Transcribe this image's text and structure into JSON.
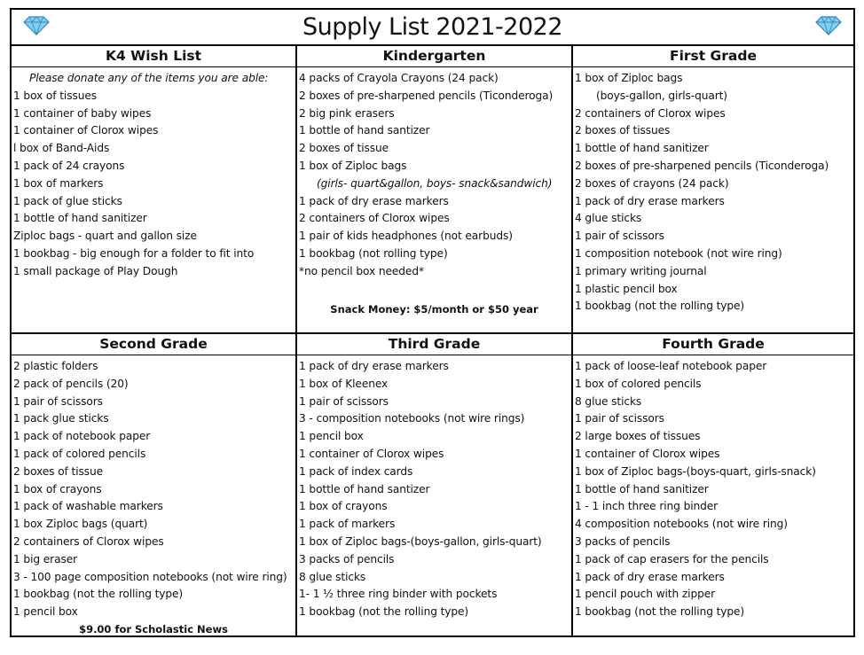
{
  "title": "Supply List 2021-2022",
  "colors": {
    "diamond": "#6ec6f0",
    "border": "#000000"
  },
  "icons": {
    "left": "diamond-icon",
    "right": "diamond-icon"
  },
  "columns": [
    {
      "heading": "K4 Wish List",
      "items": [
        {
          "text": "Please donate any of the items you are able:",
          "style": "note"
        },
        {
          "text": "1 box of tissues"
        },
        {
          "text": "1 container of baby wipes"
        },
        {
          "text": "1 container of Clorox wipes"
        },
        {
          "text": "l box of Band-Aids"
        },
        {
          "text": "1 pack of 24 crayons"
        },
        {
          "text": "1 box of markers"
        },
        {
          "text": "1 pack of glue sticks"
        },
        {
          "text": "1 bottle of hand sanitizer"
        },
        {
          "text": "Ziploc bags - quart and gallon size"
        },
        {
          "text": "1 bookbag - big enough for a folder to fit into"
        },
        {
          "text": "1 small package of Play Dough"
        }
      ],
      "footnote": ""
    },
    {
      "heading": "Kindergarten",
      "items": [
        {
          "text": "4 packs of Crayola Crayons    (24 pack)"
        },
        {
          "text": "2 boxes of pre-sharpened pencils (Ticonderoga)"
        },
        {
          "text": "2 big pink erasers"
        },
        {
          "text": "1 bottle of hand santizer"
        },
        {
          "text": "2 boxes of tissue"
        },
        {
          "text": "1 box of Ziploc bags"
        },
        {
          "text": "(girls- quart&gallon, boys- snack&sandwich)",
          "style": "indent"
        },
        {
          "text": "1 pack of dry erase markers"
        },
        {
          "text": "2 containers of Clorox wipes"
        },
        {
          "text": "1 pair of kids headphones (not earbuds)"
        },
        {
          "text": "1 bookbag (not rolling type)"
        },
        {
          "text": "*no pencil box needed*"
        }
      ],
      "footnote": "Snack Money: $5/month or $50 year"
    },
    {
      "heading": "First Grade",
      "items": [
        {
          "text": "1 box of Ziploc bags"
        },
        {
          "text": "(boys-gallon, girls-quart)",
          "style": "sub"
        },
        {
          "text": "2 containers of Clorox wipes"
        },
        {
          "text": "2 boxes of tissues"
        },
        {
          "text": "1 bottle of hand sanitizer"
        },
        {
          "text": "2 boxes of pre-sharpened pencils (Ticonderoga)"
        },
        {
          "text": "2 boxes of crayons (24 pack)"
        },
        {
          "text": "1 pack of dry erase markers"
        },
        {
          "text": "4 glue sticks"
        },
        {
          "text": "1 pair of scissors"
        },
        {
          "text": "1 composition notebook (not wire ring)"
        },
        {
          "text": "1 primary writing journal"
        },
        {
          "text": "1 plastic pencil box"
        },
        {
          "text": "1 bookbag (not the rolling type)"
        }
      ],
      "footnote": ""
    },
    {
      "heading": "Second Grade",
      "items": [
        {
          "text": "2 plastic folders"
        },
        {
          "text": "2 pack of pencils (20)"
        },
        {
          "text": "1 pair of scissors"
        },
        {
          "text": "1 pack glue sticks"
        },
        {
          "text": "1 pack of notebook paper"
        },
        {
          "text": "1 pack of colored pencils"
        },
        {
          "text": "2 boxes of tissue"
        },
        {
          "text": "1 box of crayons"
        },
        {
          "text": "1 pack of washable markers"
        },
        {
          "text": "1 box Ziploc bags (quart)"
        },
        {
          "text": "2 containers of Clorox wipes"
        },
        {
          "text": "1 big eraser"
        },
        {
          "text": "3 - 100 page composition notebooks (not wire ring)"
        },
        {
          "text": "1 bookbag (not the rolling type)"
        },
        {
          "text": "1 pencil box"
        }
      ],
      "footnote": "$9.00 for Scholastic News"
    },
    {
      "heading": "Third Grade",
      "items": [
        {
          "text": "1 pack of dry erase markers"
        },
        {
          "text": "1 box of Kleenex"
        },
        {
          "text": "1 pair of scissors"
        },
        {
          "text": "3 - composition notebooks (not wire rings)"
        },
        {
          "text": "1 pencil box"
        },
        {
          "text": "1 container of Clorox wipes"
        },
        {
          "text": "1 pack of index cards"
        },
        {
          "text": "1 bottle of hand santizer"
        },
        {
          "text": "1 box of crayons"
        },
        {
          "text": "1 pack of markers"
        },
        {
          "text": "1 box of Ziploc bags-(boys-gallon, girls-quart)"
        },
        {
          "text": "3 packs of pencils"
        },
        {
          "text": "8 glue sticks"
        },
        {
          "text": "1- 1 ½ three ring binder with pockets"
        },
        {
          "text": "1 bookbag (not the rolling type)"
        }
      ],
      "footnote": ""
    },
    {
      "heading": "Fourth Grade",
      "items": [
        {
          "text": "1 pack of loose-leaf notebook paper"
        },
        {
          "text": "1 box of colored pencils"
        },
        {
          "text": "8 glue sticks"
        },
        {
          "text": "1 pair of scissors"
        },
        {
          "text": "2 large boxes of tissues"
        },
        {
          "text": "1 container of Clorox wipes"
        },
        {
          "text": "1 box of Ziploc bags-(boys-quart, girls-snack)"
        },
        {
          "text": "1 bottle of hand sanitizer"
        },
        {
          "text": "1 - 1 inch three ring binder"
        },
        {
          "text": "4 composition notebooks (not wire ring)"
        },
        {
          "text": "3 packs of pencils"
        },
        {
          "text": "1 pack of cap erasers for the pencils"
        },
        {
          "text": "1 pack of dry erase markers"
        },
        {
          "text": "1 pencil pouch with zipper"
        },
        {
          "text": "1 bookbag (not the rolling type)"
        }
      ],
      "footnote": ""
    }
  ]
}
